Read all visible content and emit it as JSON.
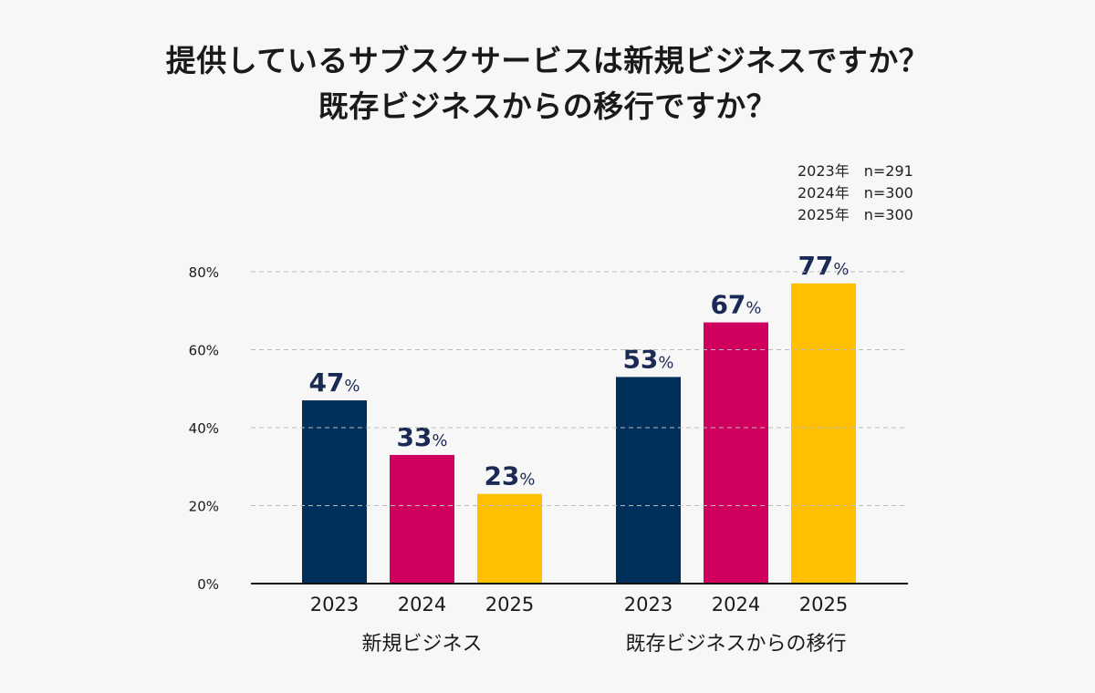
{
  "chart_data": {
    "type": "bar",
    "title": [
      "提供しているサブスクサービスは新規ビジネスですか？",
      "既存ビジネスからの移行ですか？"
    ],
    "sample_notes": [
      "2023年　n=291",
      "2024年　n=300",
      "2025年　n=300"
    ],
    "groups": [
      {
        "label": "新規ビジネス",
        "categories": [
          "2023",
          "2024",
          "2025"
        ],
        "values": [
          47,
          33,
          23
        ]
      },
      {
        "label": "既存ビジネスからの移行",
        "categories": [
          "2023",
          "2024",
          "2025"
        ],
        "values": [
          53,
          67,
          77
        ]
      }
    ],
    "value_suffix": "%",
    "yticks": [
      "0%",
      "20%",
      "40%",
      "60%",
      "80%"
    ],
    "ylim": [
      0,
      80
    ],
    "grid": true,
    "colors": {
      "2023": "#002f5a",
      "2024": "#d0005f",
      "2025": "#ffc000",
      "label": "#1b2a55"
    }
  }
}
